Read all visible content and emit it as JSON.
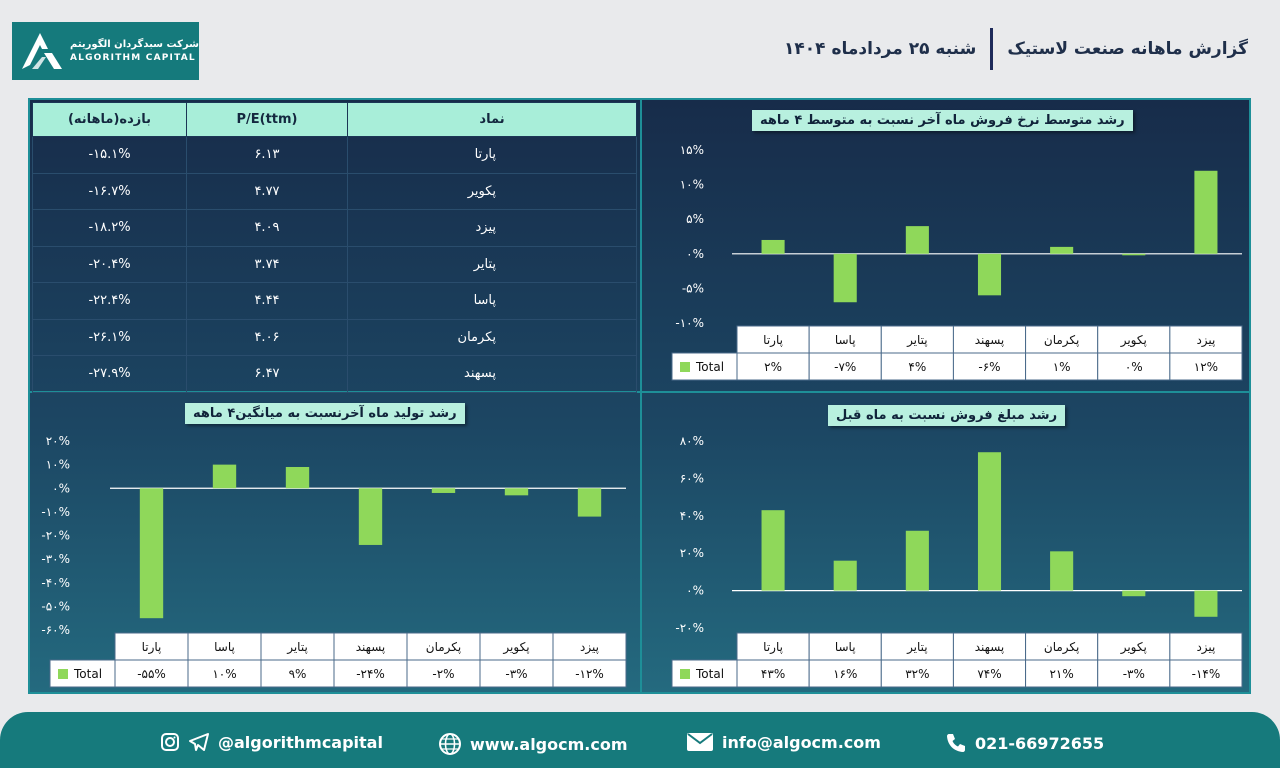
{
  "header": {
    "logo_fa": "شرکت سبدگردان الگوریتم",
    "logo_en": "ALGORITHM CAPITAL",
    "title": "گزارش ماهانه صنعت لاستیک",
    "date": "شنبه ۲۵ مردادماه ۱۴۰۴"
  },
  "table": {
    "headers": [
      "بازده(ماهانه)",
      "P/E(ttm)",
      "نماد"
    ],
    "rows": [
      {
        "ret": "-۱۵.۱%",
        "pe": "۶.۱۳",
        "name": "پارتا"
      },
      {
        "ret": "-۱۶.۷%",
        "pe": "۴.۷۷",
        "name": "پکویر"
      },
      {
        "ret": "-۱۸.۲%",
        "pe": "۴.۰۹",
        "name": "پیزد"
      },
      {
        "ret": "-۲۰.۴%",
        "pe": "۳.۷۴",
        "name": "پتایر"
      },
      {
        "ret": "-۲۲.۴%",
        "pe": "۴.۴۴",
        "name": "پاسا"
      },
      {
        "ret": "-۲۶.۱%",
        "pe": "۴.۰۶",
        "name": "پکرمان"
      },
      {
        "ret": "-۲۷.۹%",
        "pe": "۶.۴۷",
        "name": "پسهند"
      }
    ]
  },
  "chart_data": [
    {
      "id": "price",
      "type": "bar",
      "title": "رشد متوسط نرخ فروش ماه آخر نسبت به متوسط ۴ ماهه",
      "categories": [
        "پارتا",
        "پاسا",
        "پتایر",
        "پسهند",
        "پکرمان",
        "پکویر",
        "پیزد"
      ],
      "values": [
        2,
        -7,
        4,
        -6,
        1,
        0,
        12
      ],
      "labels": [
        "۲%",
        "-۷%",
        "۴%",
        "-۶%",
        "۱%",
        "۰%",
        "۱۲%"
      ],
      "series_name": "Total",
      "ylim": [
        -10,
        15
      ],
      "yticks": [
        15,
        10,
        5,
        0,
        -5,
        -10
      ],
      "ytick_labels": [
        "۱۵%",
        "۱۰%",
        "۵%",
        "۰%",
        "-۵%",
        "-۱۰%"
      ]
    },
    {
      "id": "amount",
      "type": "bar",
      "title": "رشد مبلغ فروش نسبت به ماه قبل",
      "categories": [
        "پارتا",
        "پاسا",
        "پتایر",
        "پسهند",
        "پکرمان",
        "پکویر",
        "پیزد"
      ],
      "values": [
        43,
        16,
        32,
        74,
        21,
        -3,
        -14
      ],
      "labels": [
        "۴۳%",
        "۱۶%",
        "۳۲%",
        "۷۴%",
        "۲۱%",
        "-۳%",
        "-۱۴%"
      ],
      "series_name": "Total",
      "ylim": [
        -20,
        80
      ],
      "yticks": [
        80,
        60,
        40,
        20,
        0,
        -20
      ],
      "ytick_labels": [
        "۸۰%",
        "۶۰%",
        "۴۰%",
        "۲۰%",
        "۰%",
        "-۲۰%"
      ]
    },
    {
      "id": "production",
      "type": "bar",
      "title": "رشد تولید ماه آخرنسبت به میانگین۴ ماهه",
      "categories": [
        "پارتا",
        "پاسا",
        "پتایر",
        "پسهند",
        "پکرمان",
        "پکویر",
        "پیزد"
      ],
      "values": [
        -55,
        10,
        9,
        -24,
        -2,
        -3,
        -12
      ],
      "labels": [
        "-۵۵%",
        "۱۰%",
        "۹%",
        "-۲۴%",
        "-۲%",
        "-۳%",
        "-۱۲%"
      ],
      "series_name": "Total",
      "ylim": [
        -60,
        20
      ],
      "yticks": [
        20,
        10,
        0,
        -10,
        -20,
        -30,
        -40,
        -50,
        -60
      ],
      "ytick_labels": [
        "۲۰%",
        "۱۰%",
        "۰%",
        "-۱۰%",
        "-۲۰%",
        "-۳۰%",
        "-۴۰%",
        "-۵۰%",
        "-۶۰%"
      ]
    }
  ],
  "footer": {
    "social": "@algorithmcapital",
    "web": "www.algocm.com",
    "email": "info@algocm.com",
    "phone": "021-66972655"
  },
  "colors": {
    "bar": "#8fd85a",
    "accent": "#167a7c",
    "title_bg": "#b8f0df"
  }
}
